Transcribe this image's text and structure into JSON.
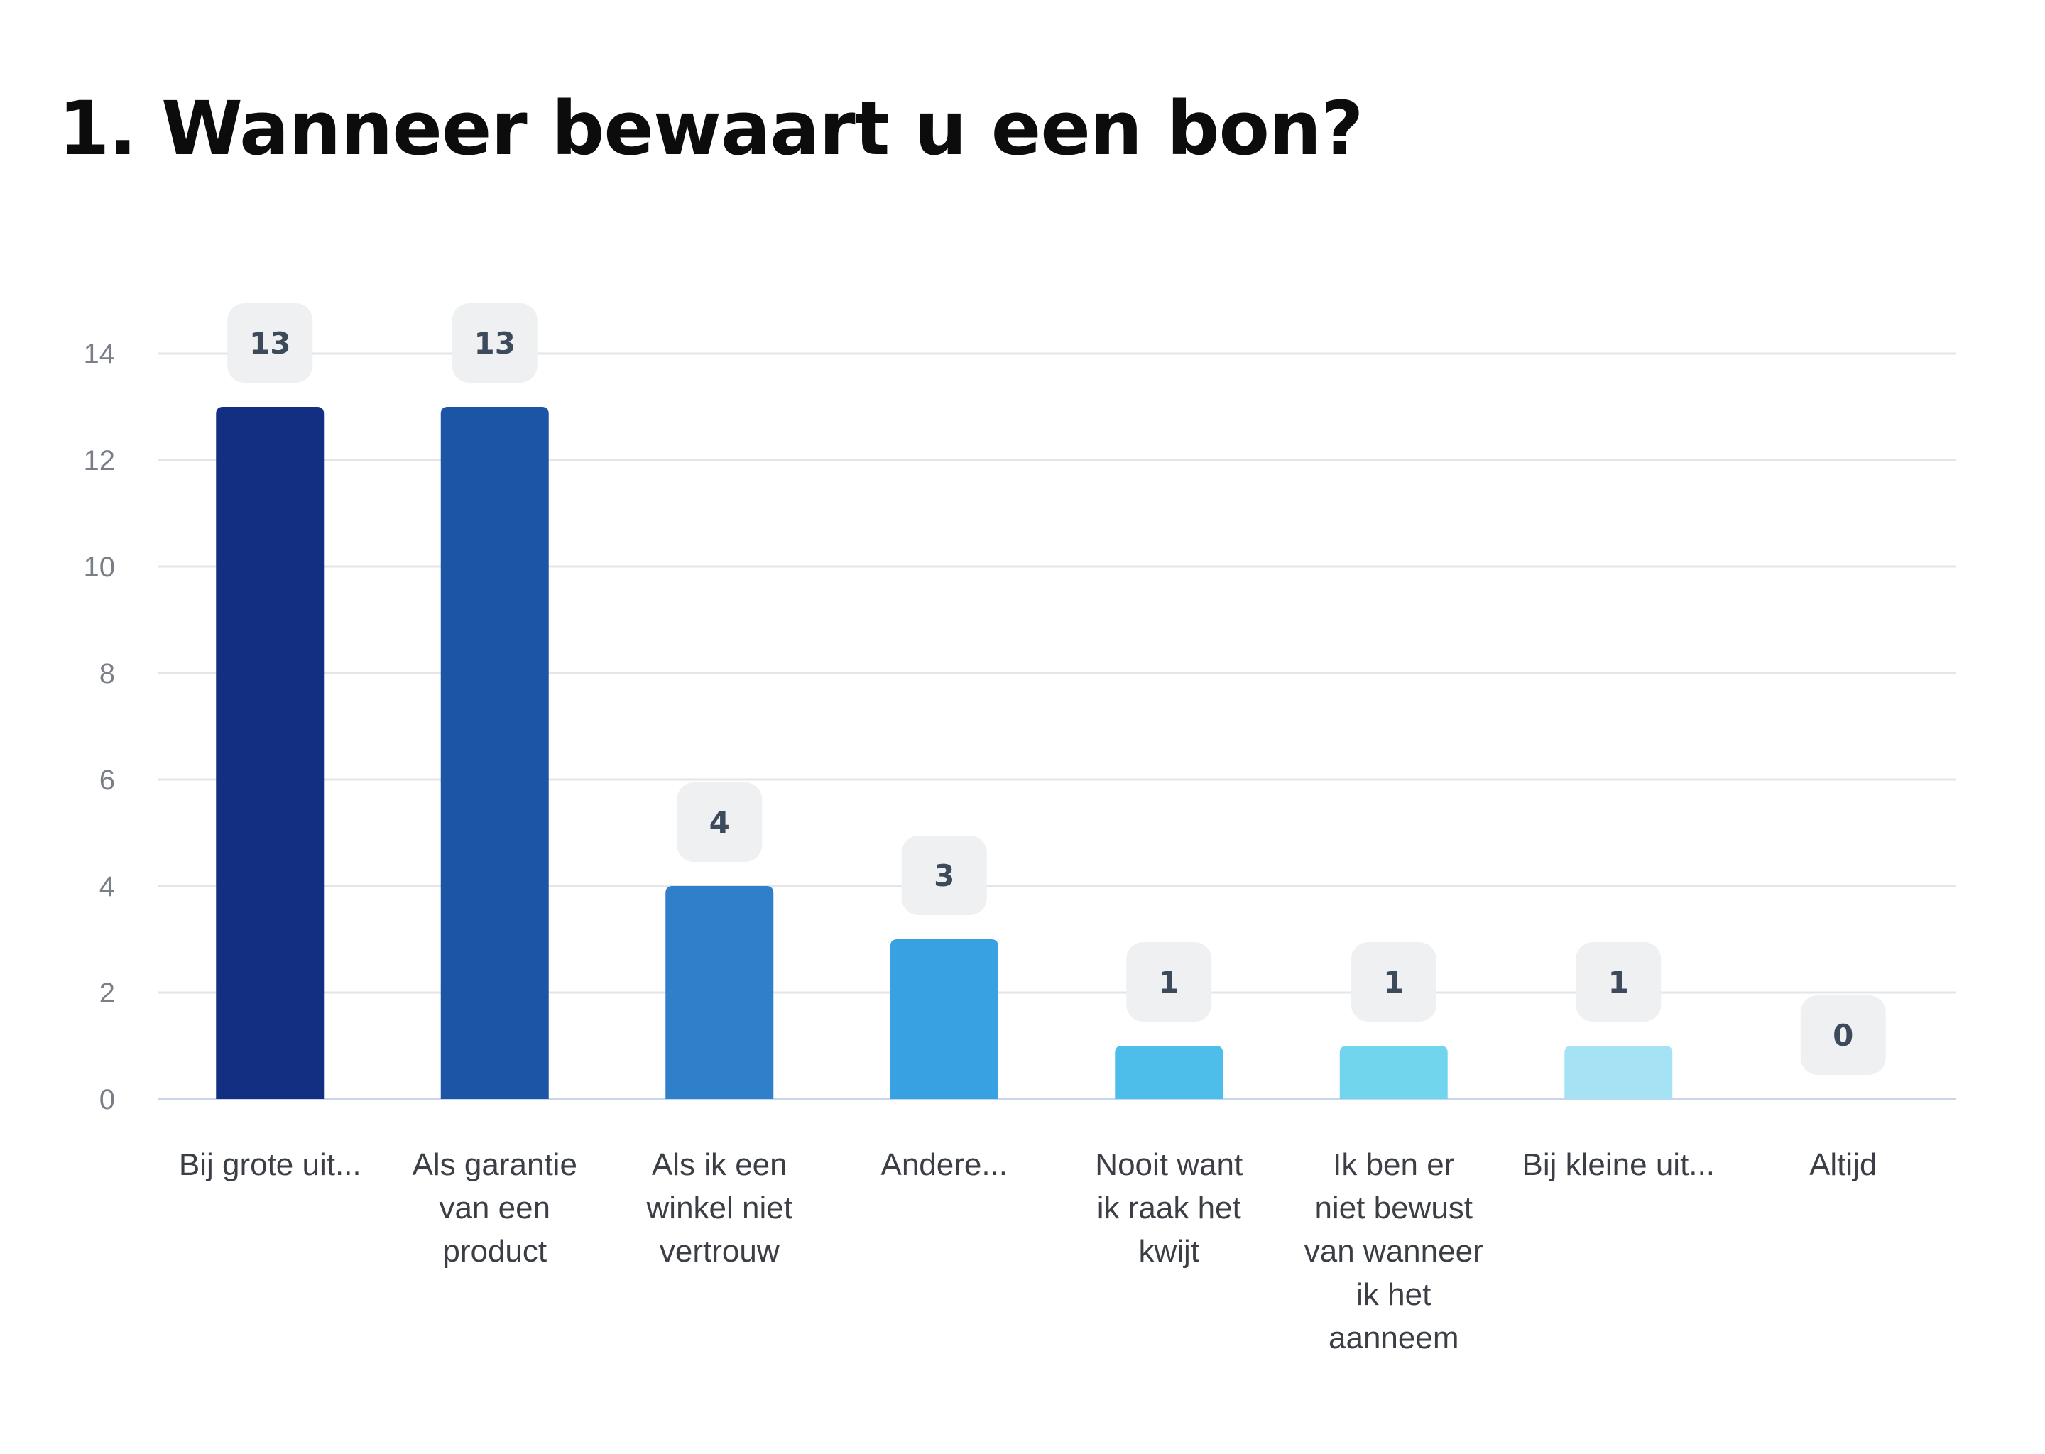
{
  "title": "1. Wanneer bewaart u een bon?",
  "colors": {
    "grid": "#e3e5e8",
    "baseline": "#c9d6ea",
    "label_bg": "#eff0f1"
  },
  "chart_data": {
    "type": "bar",
    "title": "1. Wanneer bewaart u een bon?",
    "xlabel": "",
    "ylabel": "",
    "ylim": [
      0,
      14
    ],
    "yticks": [
      0,
      2,
      4,
      6,
      8,
      10,
      12,
      14
    ],
    "grid": true,
    "legend": "none",
    "categories": [
      [
        "Bij grote uit..."
      ],
      [
        "Als garantie",
        "van een",
        "product"
      ],
      [
        "Als ik een",
        "winkel niet",
        "vertrouw"
      ],
      [
        "Andere..."
      ],
      [
        "Nooit want",
        "ik raak het",
        "kwijt"
      ],
      [
        "Ik ben er",
        "niet bewust",
        "van wanneer",
        "ik het",
        "aanneem"
      ],
      [
        "Bij kleine uit..."
      ],
      [
        "Altijd"
      ]
    ],
    "values": [
      13,
      13,
      4,
      3,
      1,
      1,
      1,
      0
    ],
    "bar_colors": [
      "#122f82",
      "#1c55a5",
      "#307fcb",
      "#38a1e2",
      "#4dbdea",
      "#72d5ee",
      "#a5e3f4",
      "#c4eef8"
    ]
  }
}
